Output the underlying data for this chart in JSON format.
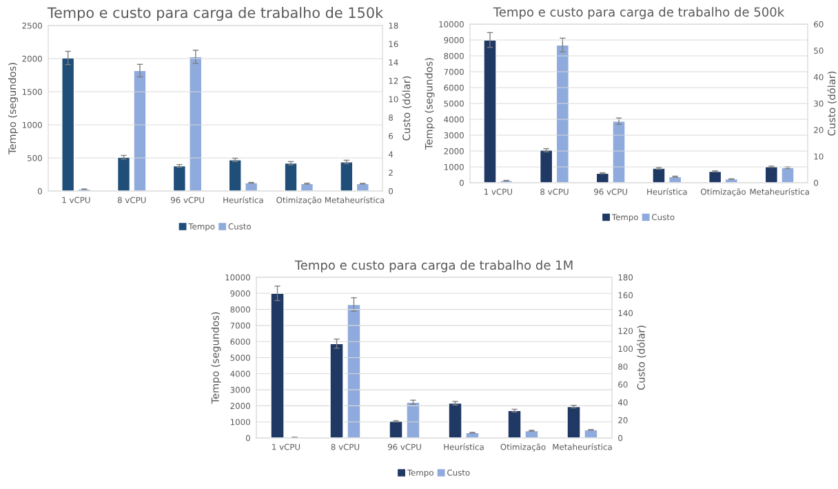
{
  "chart_data": [
    {
      "type": "bar",
      "title": "Tempo e custo para carga de trabalho de 150k",
      "ylabel": "Tempo (segundos)",
      "y2label": "Custo (dólar)",
      "categories": [
        "1 vCPU",
        "8 vCPU",
        "96 vCPU",
        "Heurística",
        "Otimização",
        "Metaheurística"
      ],
      "series": [
        {
          "name": "Tempo",
          "color": "#1f4e79",
          "values": [
            2010,
            510,
            380,
            470,
            420,
            440
          ],
          "errors": [
            100,
            28,
            20,
            25,
            25,
            25
          ]
        },
        {
          "name": "Custo",
          "color": "#8faadc",
          "axis": "y2",
          "values": [
            0.2,
            13.1,
            14.6,
            0.9,
            0.8,
            0.8
          ],
          "errors": [
            0.02,
            0.68,
            0.72,
            0.04,
            0.06,
            0.04
          ]
        }
      ],
      "ylim": [
        0,
        2500
      ],
      "yticks": [
        0,
        500,
        1000,
        1500,
        2000,
        2500
      ],
      "y2lim": [
        0,
        18
      ],
      "y2ticks": [
        0,
        2,
        4,
        6,
        8,
        10,
        12,
        14,
        16,
        18
      ],
      "grid": "y",
      "legend": "bottom"
    },
    {
      "type": "bar",
      "title": "Tempo e custo para carga de trabalho de 500k",
      "ylabel": "Tempo (segundos)",
      "y2label": "Custo (dólar)",
      "categories": [
        "1 vCPU",
        "8 vCPU",
        "96 vCPU",
        "Heurística",
        "Otimização",
        "Metaheurística"
      ],
      "series": [
        {
          "name": "Tempo",
          "color": "#203864",
          "values": [
            9000,
            2050,
            600,
            910,
            720,
            1010
          ],
          "errors": [
            465,
            100,
            30,
            50,
            30,
            40
          ]
        },
        {
          "name": "Custo",
          "color": "#8faadc",
          "axis": "y2",
          "values": [
            0.8,
            52.1,
            23.3,
            2.3,
            1.4,
            5.7
          ],
          "errors": [
            0.1,
            2.6,
            1.2,
            0.2,
            0.1,
            0.35
          ]
        }
      ],
      "ylim": [
        0,
        10000
      ],
      "yticks": [
        0,
        1000,
        2000,
        3000,
        4000,
        5000,
        6000,
        7000,
        8000,
        9000,
        10000
      ],
      "y2lim": [
        0,
        60
      ],
      "y2ticks": [
        0,
        10,
        20,
        30,
        40,
        50,
        60
      ],
      "grid": "y",
      "legend": "bottom"
    },
    {
      "type": "bar",
      "title": "Tempo e custo para carga de trabalho de 1M",
      "ylabel": "Tempo (segundos)",
      "y2label": "Custo (dólar)",
      "categories": [
        "1 vCPU",
        "8 vCPU",
        "96 vCPU",
        "Heurística",
        "Otimização",
        "Metaheurística"
      ],
      "series": [
        {
          "name": "Tempo",
          "color": "#203864",
          "values": [
            9000,
            5870,
            1040,
            2160,
            1700,
            1950
          ],
          "errors": [
            450,
            285,
            40,
            110,
            85,
            80
          ]
        },
        {
          "name": "Custo",
          "color": "#8faadc",
          "axis": "y2",
          "values": [
            0.6,
            149.5,
            40,
            5.9,
            8.1,
            9.0
          ],
          "errors": [
            0.2,
            7.6,
            2.3,
            0.4,
            0.6,
            0.4
          ]
        }
      ],
      "ylim": [
        0,
        10000
      ],
      "yticks": [
        0,
        1000,
        2000,
        3000,
        4000,
        5000,
        6000,
        7000,
        8000,
        9000,
        10000
      ],
      "y2lim": [
        0,
        180
      ],
      "y2ticks": [
        0,
        20,
        40,
        60,
        80,
        100,
        120,
        140,
        160,
        180
      ],
      "grid": "y",
      "legend": "bottom"
    }
  ]
}
